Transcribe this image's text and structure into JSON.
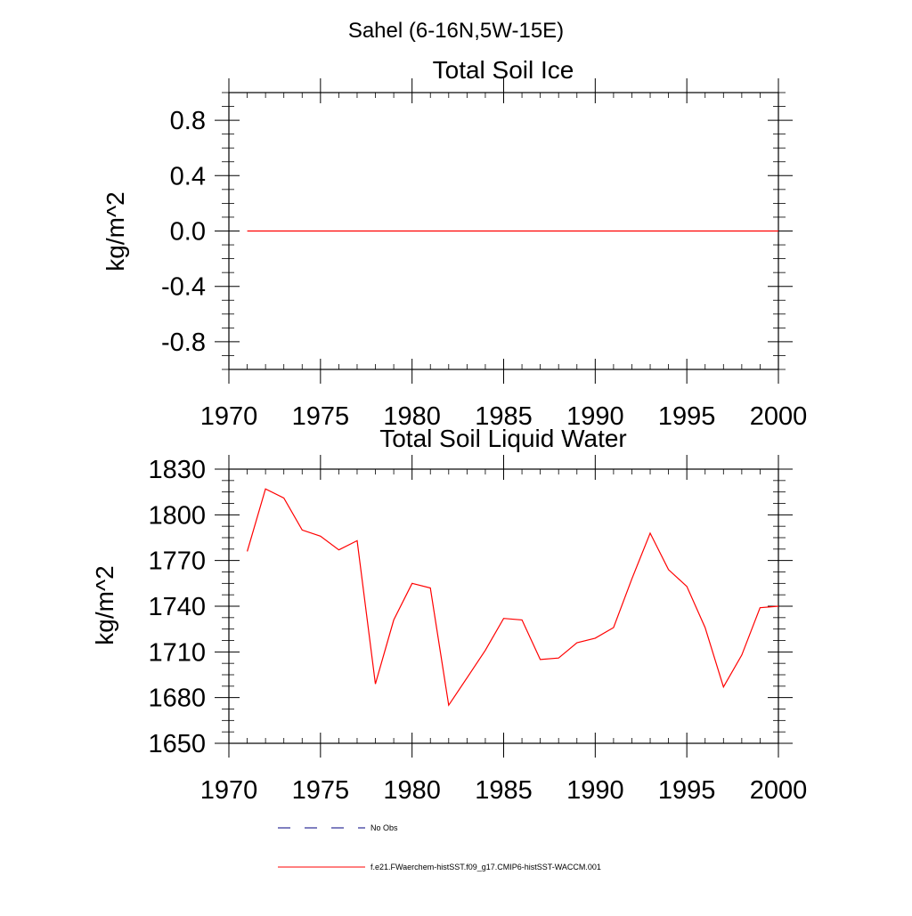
{
  "figure": {
    "suptitle": "Sahel (6-16N,5W-15E)"
  },
  "chart_data": [
    {
      "type": "line",
      "title": "Total Soil Ice",
      "xlabel": "",
      "ylabel": "kg/m^2",
      "xlim": [
        1970,
        2000
      ],
      "ylim": [
        -1,
        1
      ],
      "xticks": [
        1970,
        1975,
        1980,
        1985,
        1990,
        1995,
        2000
      ],
      "yticks": [
        -0.8,
        -0.4,
        0.0,
        0.4,
        0.8
      ],
      "ytick_labels": [
        "-0.8",
        "-0.4",
        "0.0",
        "0.4",
        "0.8"
      ],
      "grid": false,
      "series": [
        {
          "color": "#ff0000",
          "x": [
            1971,
            1972,
            1973,
            1974,
            1975,
            1976,
            1977,
            1978,
            1979,
            1980,
            1981,
            1982,
            1983,
            1984,
            1985,
            1986,
            1987,
            1988,
            1989,
            1990,
            1991,
            1992,
            1993,
            1994,
            1995,
            1996,
            1997,
            1998,
            1999,
            2000
          ],
          "values": [
            0,
            0,
            0,
            0,
            0,
            0,
            0,
            0,
            0,
            0,
            0,
            0,
            0,
            0,
            0,
            0,
            0,
            0,
            0,
            0,
            0,
            0,
            0,
            0,
            0,
            0,
            0,
            0,
            0,
            0
          ]
        }
      ]
    },
    {
      "type": "line",
      "title": "Total Soil Liquid Water",
      "xlabel": "",
      "ylabel": "kg/m^2",
      "xlim": [
        1970,
        2000
      ],
      "ylim": [
        1650,
        1830
      ],
      "xticks": [
        1970,
        1975,
        1980,
        1985,
        1990,
        1995,
        2000
      ],
      "yticks": [
        1650,
        1680,
        1710,
        1740,
        1770,
        1800,
        1830
      ],
      "ytick_labels": [
        "1650",
        "1680",
        "1710",
        "1740",
        "1770",
        "1800",
        "1830"
      ],
      "grid": false,
      "series": [
        {
          "color": "#ff0000",
          "x": [
            1971,
            1972,
            1973,
            1974,
            1975,
            1976,
            1977,
            1978,
            1979,
            1980,
            1981,
            1982,
            1983,
            1984,
            1985,
            1986,
            1987,
            1988,
            1989,
            1990,
            1991,
            1992,
            1993,
            1994,
            1995,
            1996,
            1997,
            1998,
            1999,
            2000
          ],
          "values": [
            1776,
            1817,
            1811,
            1790,
            1786,
            1777,
            1783,
            1689,
            1731,
            1755,
            1752,
            1675,
            1693,
            1711,
            1732,
            1731,
            1705,
            1706,
            1716,
            1719,
            1726,
            1758,
            1788,
            1764,
            1753,
            1726,
            1687,
            1708,
            1739,
            1740
          ]
        }
      ]
    }
  ],
  "legend": {
    "placement": "bottom",
    "entries": [
      {
        "label": "No Obs",
        "color": "#000080",
        "style": "dashed"
      },
      {
        "label": "f.e21.FWaerchem-histSST.f09_g17.CMIP6-histSST-WACCM.001",
        "color": "#ff0000",
        "style": "solid"
      }
    ]
  }
}
